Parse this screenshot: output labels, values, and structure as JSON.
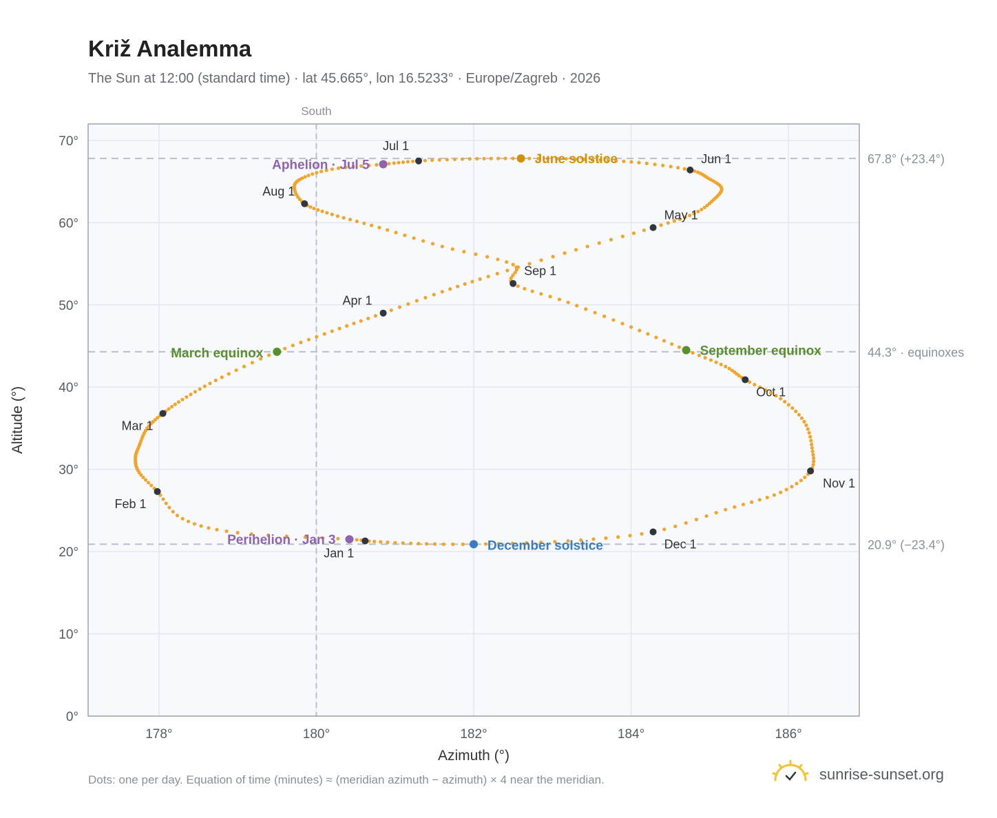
{
  "title": "Križ Analemma",
  "subtitle": "The Sun at 12:00 (standard time) · lat 45.665°, lon 16.5233° · Europe/Zagreb · 2026",
  "footnote": "Dots: one per day. Equation of time (minutes) ≈ (meridian azimuth − azimuth) × 4 near the meridian.",
  "brand": "sunrise-sunset.org",
  "colors": {
    "curve": "#f2a52b",
    "month_marker": "#2f3640",
    "june_solstice": "#d4900a",
    "december_solstice": "#3a7dc1",
    "equinox": "#5a8f2e",
    "apsis": "#8e63b0",
    "grid": "#e3e8ee",
    "plot_bg": "#f7f9fc",
    "reference_line": "#b7c0c9"
  },
  "chart_data": {
    "type": "scatter",
    "xlabel": "Azimuth (°)",
    "ylabel": "Altitude (°)",
    "xlim": [
      177.1,
      186.9
    ],
    "ylim": [
      0,
      72
    ],
    "x_ticks": [
      178,
      180,
      182,
      184,
      186
    ],
    "x_tick_labels": [
      "178°",
      "180°",
      "182°",
      "184°",
      "186°"
    ],
    "y_ticks": [
      0,
      10,
      20,
      30,
      40,
      50,
      60,
      70
    ],
    "y_tick_labels": [
      "0°",
      "10°",
      "20°",
      "30°",
      "40°",
      "50°",
      "60°",
      "70°"
    ],
    "grid": true,
    "meridian": {
      "x": 180,
      "label": "South"
    },
    "reference_lines": [
      {
        "y": 67.8,
        "label": "67.8° (+23.4°)"
      },
      {
        "y": 44.3,
        "label": "44.3° · equinoxes"
      },
      {
        "y": 20.9,
        "label": "20.9° (−23.4°)"
      }
    ],
    "series": [
      {
        "name": "Daily sun position",
        "points": [
          [
            180.62,
            21.3
          ],
          [
            180.42,
            21.5
          ],
          [
            179.0,
            22.3
          ],
          [
            178.3,
            24.0
          ],
          [
            177.98,
            27.3
          ],
          [
            177.75,
            29.6
          ],
          [
            177.7,
            31.3
          ],
          [
            177.75,
            32.9
          ],
          [
            177.85,
            35.0
          ],
          [
            178.05,
            36.8
          ],
          [
            178.35,
            38.8
          ],
          [
            178.8,
            41.2
          ],
          [
            179.5,
            44.3
          ],
          [
            180.2,
            46.8
          ],
          [
            180.85,
            49.0
          ],
          [
            181.6,
            51.6
          ],
          [
            182.3,
            53.8
          ],
          [
            183.3,
            56.7
          ],
          [
            184.28,
            59.4
          ],
          [
            184.8,
            61.1
          ],
          [
            185.05,
            62.8
          ],
          [
            185.15,
            64.2
          ],
          [
            184.98,
            65.4
          ],
          [
            184.75,
            66.4
          ],
          [
            184.1,
            67.3
          ],
          [
            183.4,
            67.7
          ],
          [
            182.6,
            67.8
          ],
          [
            181.95,
            67.75
          ],
          [
            181.3,
            67.5
          ],
          [
            180.85,
            67.1
          ],
          [
            180.2,
            66.5
          ],
          [
            179.82,
            65.4
          ],
          [
            179.72,
            64.2
          ],
          [
            179.85,
            62.3
          ],
          [
            180.2,
            61.0
          ],
          [
            180.8,
            59.4
          ],
          [
            181.6,
            57.1
          ],
          [
            182.5,
            54.9
          ],
          [
            182.5,
            52.6
          ],
          [
            183.2,
            50.3
          ],
          [
            184.0,
            47.3
          ],
          [
            184.7,
            44.5
          ],
          [
            185.2,
            42.5
          ],
          [
            185.45,
            40.9
          ],
          [
            185.9,
            38.6
          ],
          [
            186.2,
            35.8
          ],
          [
            186.3,
            32.6
          ],
          [
            186.28,
            29.8
          ],
          [
            185.9,
            27.2
          ],
          [
            185.2,
            25.1
          ],
          [
            184.28,
            22.4
          ],
          [
            183.2,
            21.3
          ],
          [
            182.0,
            20.9
          ],
          [
            181.2,
            21.0
          ],
          [
            180.62,
            21.3
          ]
        ]
      }
    ],
    "month_markers": [
      {
        "label": "Jan 1",
        "x": 180.62,
        "y": 21.3
      },
      {
        "label": "Feb 1",
        "x": 177.98,
        "y": 27.3
      },
      {
        "label": "Mar 1",
        "x": 178.05,
        "y": 36.8
      },
      {
        "label": "Apr 1",
        "x": 180.85,
        "y": 49.0
      },
      {
        "label": "May 1",
        "x": 184.28,
        "y": 59.4
      },
      {
        "label": "Jun 1",
        "x": 184.75,
        "y": 66.4
      },
      {
        "label": "Jul 1",
        "x": 181.3,
        "y": 67.5
      },
      {
        "label": "Aug 1",
        "x": 179.85,
        "y": 62.3
      },
      {
        "label": "Sep 1",
        "x": 182.5,
        "y": 52.6
      },
      {
        "label": "Oct 1",
        "x": 185.45,
        "y": 40.9
      },
      {
        "label": "Nov 1",
        "x": 186.28,
        "y": 29.8
      },
      {
        "label": "Dec 1",
        "x": 184.28,
        "y": 22.4
      }
    ],
    "events": [
      {
        "label": "June solstice",
        "x": 182.6,
        "y": 67.8,
        "kind": "june_solstice"
      },
      {
        "label": "December solstice",
        "x": 182.0,
        "y": 20.9,
        "kind": "december_solstice"
      },
      {
        "label": "March equinox",
        "x": 179.5,
        "y": 44.3,
        "kind": "equinox"
      },
      {
        "label": "September equinox",
        "x": 184.7,
        "y": 44.5,
        "kind": "equinox"
      },
      {
        "label": "Aphelion · Jul 5",
        "x": 180.85,
        "y": 67.1,
        "kind": "apsis"
      },
      {
        "label": "Perihelion · Jan 3",
        "x": 180.42,
        "y": 21.5,
        "kind": "apsis"
      }
    ]
  }
}
